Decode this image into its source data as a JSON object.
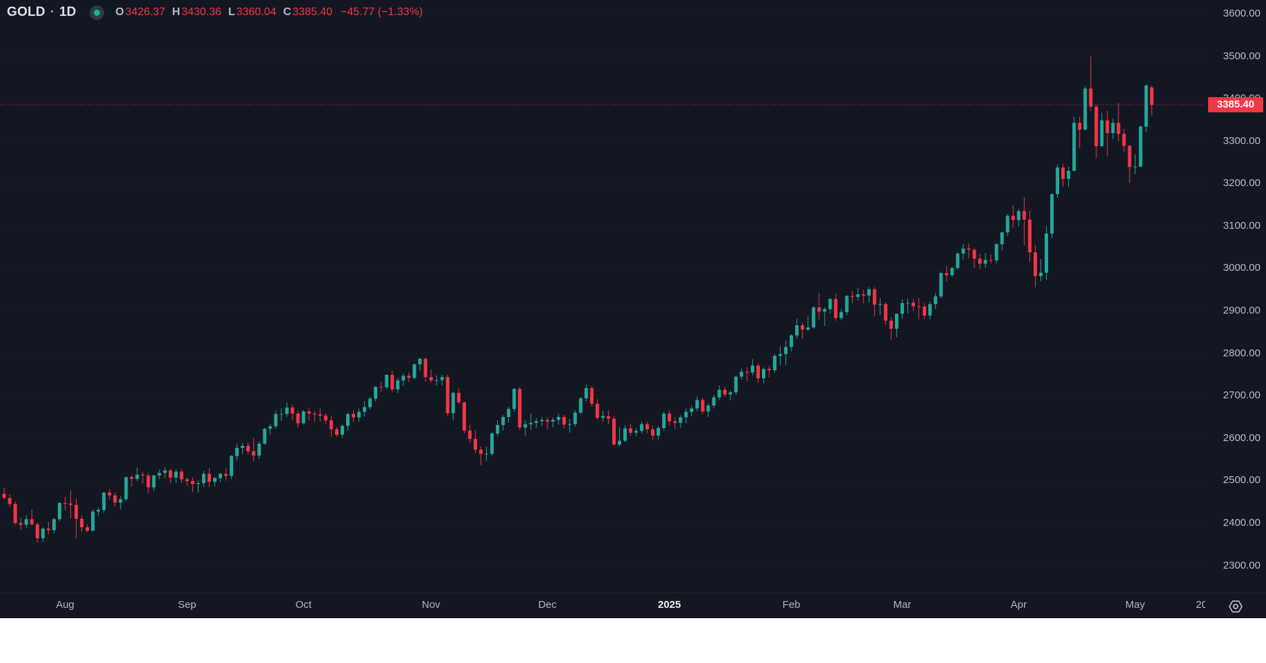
{
  "theme": {
    "background": "#131722",
    "page_background": "#ffffff",
    "up_color": "#26a69a",
    "down_color": "#f23645",
    "axis_text": "#b2b5be",
    "badge_bg": "#f23645",
    "badge_text": "#ffffff",
    "grid": "rgba(140,148,164,0.10)",
    "status_dot": "#14b198"
  },
  "legend": {
    "symbol": "GOLD",
    "separator": "·",
    "interval": "1D",
    "o_label": "O",
    "o_value": "3426.37",
    "h_label": "H",
    "h_value": "3430.36",
    "l_label": "L",
    "l_value": "3360.04",
    "c_label": "C",
    "c_value": "3385.40",
    "change": "−45.77 (−1.33%)",
    "status_icon": "market-status-dot"
  },
  "chart_data": {
    "type": "candlestick",
    "title": "GOLD · 1D",
    "up_color": "#26a69a",
    "down_color": "#f23645",
    "grid": "on",
    "legend_position": "top-left",
    "last_price": 3385.4,
    "last_price_label": "3385.40",
    "last_price_line_color": "#f23645",
    "price_axis": {
      "min": 2300,
      "max": 3600,
      "step": 100,
      "tick_values": [
        3600,
        3500,
        3400,
        3300,
        3200,
        3100,
        3000,
        2900,
        2800,
        2700,
        2600,
        2500,
        2400,
        2300
      ],
      "tick_labels": [
        "3600.00",
        "3500.00",
        "3400.00",
        "3300.00",
        "3200.00",
        "3100.00",
        "3000.00",
        "2900.00",
        "2800.00",
        "2700.00",
        "2600.00",
        "2500.00",
        "2400.00",
        "2300.00"
      ]
    },
    "time_axis_labels": [
      {
        "label": "Aug",
        "index": 11
      },
      {
        "label": "Sep",
        "index": 33
      },
      {
        "label": "Oct",
        "index": 54
      },
      {
        "label": "Nov",
        "index": 77
      },
      {
        "label": "Dec",
        "index": 98
      },
      {
        "label": "2025",
        "index": 120,
        "emphasis": true
      },
      {
        "label": "Feb",
        "index": 142
      },
      {
        "label": "Mar",
        "index": 162
      },
      {
        "label": "Apr",
        "index": 183
      },
      {
        "label": "May",
        "index": 204
      },
      {
        "label": "20",
        "index": 216
      }
    ],
    "x_range_note": "daily candles, mid-Jul 2024 through May 7 2025",
    "candles_ohlc": [
      [
        2469,
        2483,
        2456,
        2459
      ],
      [
        2459,
        2468,
        2438,
        2445
      ],
      [
        2445,
        2451,
        2396,
        2400
      ],
      [
        2400,
        2412,
        2384,
        2396
      ],
      [
        2396,
        2418,
        2388,
        2409
      ],
      [
        2409,
        2432,
        2394,
        2397
      ],
      [
        2397,
        2402,
        2353,
        2364
      ],
      [
        2364,
        2390,
        2356,
        2387
      ],
      [
        2387,
        2403,
        2373,
        2383
      ],
      [
        2383,
        2412,
        2375,
        2409
      ],
      [
        2409,
        2450,
        2404,
        2447
      ],
      [
        2447,
        2462,
        2430,
        2446
      ],
      [
        2446,
        2477,
        2411,
        2443
      ],
      [
        2443,
        2458,
        2364,
        2410
      ],
      [
        2410,
        2418,
        2379,
        2390
      ],
      [
        2390,
        2397,
        2378,
        2382
      ],
      [
        2382,
        2432,
        2380,
        2427
      ],
      [
        2427,
        2438,
        2417,
        2431
      ],
      [
        2431,
        2473,
        2424,
        2472
      ],
      [
        2472,
        2480,
        2455,
        2465
      ],
      [
        2465,
        2472,
        2439,
        2448
      ],
      [
        2448,
        2464,
        2432,
        2456
      ],
      [
        2456,
        2510,
        2452,
        2508
      ],
      [
        2508,
        2512,
        2486,
        2504
      ],
      [
        2504,
        2531,
        2499,
        2514
      ],
      [
        2514,
        2520,
        2493,
        2512
      ],
      [
        2512,
        2518,
        2471,
        2484
      ],
      [
        2484,
        2514,
        2475,
        2512
      ],
      [
        2512,
        2526,
        2503,
        2518
      ],
      [
        2518,
        2532,
        2506,
        2524
      ],
      [
        2524,
        2528,
        2493,
        2507
      ],
      [
        2507,
        2527,
        2495,
        2521
      ],
      [
        2521,
        2528,
        2494,
        2503
      ],
      [
        2503,
        2507,
        2488,
        2499
      ],
      [
        2499,
        2507,
        2473,
        2492
      ],
      [
        2492,
        2500,
        2471,
        2494
      ],
      [
        2494,
        2523,
        2486,
        2516
      ],
      [
        2516,
        2529,
        2485,
        2497
      ],
      [
        2497,
        2508,
        2486,
        2506
      ],
      [
        2506,
        2518,
        2497,
        2516
      ],
      [
        2516,
        2529,
        2500,
        2511
      ],
      [
        2511,
        2560,
        2503,
        2558
      ],
      [
        2558,
        2586,
        2548,
        2577
      ],
      [
        2577,
        2589,
        2563,
        2582
      ],
      [
        2582,
        2590,
        2561,
        2569
      ],
      [
        2569,
        2600,
        2546,
        2559
      ],
      [
        2559,
        2593,
        2551,
        2587
      ],
      [
        2587,
        2625,
        2584,
        2622
      ],
      [
        2622,
        2634,
        2609,
        2628
      ],
      [
        2628,
        2664,
        2622,
        2657
      ],
      [
        2657,
        2670,
        2641,
        2657
      ],
      [
        2657,
        2685,
        2650,
        2672
      ],
      [
        2672,
        2679,
        2642,
        2658
      ],
      [
        2658,
        2665,
        2625,
        2635
      ],
      [
        2635,
        2666,
        2632,
        2663
      ],
      [
        2663,
        2672,
        2641,
        2658
      ],
      [
        2658,
        2663,
        2638,
        2656
      ],
      [
        2656,
        2670,
        2639,
        2653
      ],
      [
        2653,
        2659,
        2632,
        2642
      ],
      [
        2642,
        2653,
        2604,
        2621
      ],
      [
        2621,
        2626,
        2603,
        2608
      ],
      [
        2608,
        2632,
        2601,
        2629
      ],
      [
        2629,
        2660,
        2618,
        2657
      ],
      [
        2657,
        2666,
        2638,
        2649
      ],
      [
        2649,
        2670,
        2639,
        2662
      ],
      [
        2662,
        2687,
        2651,
        2673
      ],
      [
        2673,
        2697,
        2668,
        2693
      ],
      [
        2693,
        2722,
        2687,
        2721
      ],
      [
        2721,
        2733,
        2709,
        2720
      ],
      [
        2720,
        2750,
        2715,
        2749
      ],
      [
        2749,
        2759,
        2708,
        2715
      ],
      [
        2715,
        2742,
        2706,
        2736
      ],
      [
        2736,
        2752,
        2723,
        2747
      ],
      [
        2747,
        2755,
        2732,
        2742
      ],
      [
        2742,
        2776,
        2738,
        2774
      ],
      [
        2774,
        2789,
        2758,
        2787
      ],
      [
        2787,
        2790,
        2733,
        2744
      ],
      [
        2744,
        2762,
        2731,
        2736
      ],
      [
        2736,
        2748,
        2724,
        2737
      ],
      [
        2737,
        2750,
        2724,
        2744
      ],
      [
        2744,
        2749,
        2652,
        2659
      ],
      [
        2659,
        2710,
        2643,
        2707
      ],
      [
        2707,
        2717,
        2680,
        2684
      ],
      [
        2684,
        2686,
        2611,
        2618
      ],
      [
        2618,
        2632,
        2589,
        2598
      ],
      [
        2598,
        2619,
        2565,
        2573
      ],
      [
        2573,
        2580,
        2536,
        2563
      ],
      [
        2563,
        2580,
        2546,
        2563
      ],
      [
        2563,
        2614,
        2558,
        2611
      ],
      [
        2611,
        2642,
        2605,
        2631
      ],
      [
        2631,
        2654,
        2618,
        2650
      ],
      [
        2650,
        2674,
        2637,
        2669
      ],
      [
        2669,
        2718,
        2662,
        2716
      ],
      [
        2716,
        2721,
        2619,
        2625
      ],
      [
        2625,
        2642,
        2606,
        2633
      ],
      [
        2633,
        2658,
        2620,
        2636
      ],
      [
        2636,
        2648,
        2625,
        2640
      ],
      [
        2640,
        2650,
        2629,
        2643
      ],
      [
        2643,
        2649,
        2622,
        2639
      ],
      [
        2639,
        2649,
        2626,
        2643
      ],
      [
        2643,
        2657,
        2632,
        2650
      ],
      [
        2650,
        2655,
        2623,
        2632
      ],
      [
        2632,
        2645,
        2613,
        2633
      ],
      [
        2633,
        2666,
        2627,
        2660
      ],
      [
        2660,
        2697,
        2655,
        2694
      ],
      [
        2694,
        2726,
        2687,
        2718
      ],
      [
        2718,
        2723,
        2675,
        2681
      ],
      [
        2681,
        2692,
        2644,
        2648
      ],
      [
        2648,
        2664,
        2639,
        2652
      ],
      [
        2652,
        2665,
        2633,
        2646
      ],
      [
        2646,
        2652,
        2583,
        2585
      ],
      [
        2585,
        2626,
        2580,
        2594
      ],
      [
        2594,
        2631,
        2591,
        2623
      ],
      [
        2623,
        2634,
        2605,
        2613
      ],
      [
        2613,
        2624,
        2605,
        2617
      ],
      [
        2617,
        2639,
        2611,
        2633
      ],
      [
        2633,
        2638,
        2612,
        2621
      ],
      [
        2621,
        2629,
        2596,
        2606
      ],
      [
        2606,
        2629,
        2596,
        2624
      ],
      [
        2624,
        2662,
        2617,
        2658
      ],
      [
        2658,
        2666,
        2630,
        2640
      ],
      [
        2640,
        2650,
        2622,
        2636
      ],
      [
        2636,
        2654,
        2625,
        2649
      ],
      [
        2649,
        2670,
        2635,
        2662
      ],
      [
        2662,
        2677,
        2652,
        2670
      ],
      [
        2670,
        2698,
        2663,
        2690
      ],
      [
        2690,
        2695,
        2656,
        2663
      ],
      [
        2663,
        2682,
        2650,
        2677
      ],
      [
        2677,
        2702,
        2670,
        2696
      ],
      [
        2696,
        2724,
        2690,
        2714
      ],
      [
        2714,
        2721,
        2697,
        2703
      ],
      [
        2703,
        2712,
        2689,
        2708
      ],
      [
        2708,
        2748,
        2702,
        2745
      ],
      [
        2745,
        2763,
        2738,
        2756
      ],
      [
        2756,
        2767,
        2735,
        2755
      ],
      [
        2755,
        2786,
        2748,
        2771
      ],
      [
        2771,
        2776,
        2731,
        2741
      ],
      [
        2741,
        2767,
        2730,
        2763
      ],
      [
        2763,
        2770,
        2744,
        2760
      ],
      [
        2760,
        2798,
        2754,
        2794
      ],
      [
        2794,
        2817,
        2772,
        2798
      ],
      [
        2798,
        2830,
        2772,
        2815
      ],
      [
        2815,
        2845,
        2804,
        2842
      ],
      [
        2842,
        2882,
        2834,
        2866
      ],
      [
        2866,
        2873,
        2834,
        2856
      ],
      [
        2856,
        2887,
        2852,
        2861
      ],
      [
        2861,
        2911,
        2858,
        2908
      ],
      [
        2908,
        2942,
        2880,
        2898
      ],
      [
        2898,
        2909,
        2864,
        2904
      ],
      [
        2904,
        2930,
        2894,
        2928
      ],
      [
        2928,
        2940,
        2877,
        2883
      ],
      [
        2883,
        2905,
        2878,
        2897
      ],
      [
        2897,
        2937,
        2890,
        2935
      ],
      [
        2935,
        2947,
        2918,
        2933
      ],
      [
        2933,
        2954,
        2924,
        2939
      ],
      [
        2939,
        2950,
        2917,
        2936
      ],
      [
        2936,
        2956,
        2920,
        2951
      ],
      [
        2951,
        2956,
        2888,
        2915
      ],
      [
        2915,
        2930,
        2891,
        2916
      ],
      [
        2916,
        2920,
        2867,
        2877
      ],
      [
        2877,
        2885,
        2832,
        2858
      ],
      [
        2858,
        2894,
        2838,
        2893
      ],
      [
        2893,
        2927,
        2880,
        2918
      ],
      [
        2918,
        2929,
        2894,
        2919
      ],
      [
        2919,
        2928,
        2900,
        2911
      ],
      [
        2911,
        2930,
        2880,
        2910
      ],
      [
        2910,
        2918,
        2881,
        2889
      ],
      [
        2889,
        2922,
        2880,
        2916
      ],
      [
        2916,
        2942,
        2904,
        2934
      ],
      [
        2934,
        2993,
        2930,
        2989
      ],
      [
        2989,
        3005,
        2969,
        2984
      ],
      [
        2984,
        3004,
        2980,
        3001
      ],
      [
        3001,
        3039,
        2997,
        3035
      ],
      [
        3035,
        3057,
        3021,
        3047
      ],
      [
        3047,
        3059,
        3023,
        3044
      ],
      [
        3044,
        3048,
        3001,
        3023
      ],
      [
        3023,
        3034,
        2999,
        3011
      ],
      [
        3011,
        3036,
        3002,
        3020
      ],
      [
        3020,
        3033,
        3012,
        3019
      ],
      [
        3019,
        3060,
        3012,
        3057
      ],
      [
        3057,
        3087,
        3043,
        3085
      ],
      [
        3085,
        3128,
        3076,
        3124
      ],
      [
        3124,
        3149,
        3096,
        3114
      ],
      [
        3114,
        3140,
        3100,
        3135
      ],
      [
        3135,
        3168,
        3054,
        3115
      ],
      [
        3115,
        3136,
        3015,
        3038
      ],
      [
        3038,
        3055,
        2956,
        2982
      ],
      [
        2982,
        3022,
        2970,
        2990
      ],
      [
        2990,
        3100,
        2973,
        3082
      ],
      [
        3082,
        3176,
        3071,
        3175
      ],
      [
        3175,
        3245,
        3166,
        3238
      ],
      [
        3238,
        3246,
        3193,
        3211
      ],
      [
        3211,
        3240,
        3192,
        3230
      ],
      [
        3230,
        3357,
        3229,
        3343
      ],
      [
        3343,
        3358,
        3283,
        3327
      ],
      [
        3327,
        3430,
        3326,
        3424
      ],
      [
        3424,
        3500,
        3370,
        3381
      ],
      [
        3381,
        3386,
        3260,
        3288
      ],
      [
        3288,
        3367,
        3287,
        3349
      ],
      [
        3349,
        3371,
        3265,
        3319
      ],
      [
        3319,
        3353,
        3305,
        3343
      ],
      [
        3343,
        3390,
        3300,
        3317
      ],
      [
        3317,
        3328,
        3274,
        3289
      ],
      [
        3289,
        3291,
        3202,
        3239
      ],
      [
        3239,
        3269,
        3222,
        3240
      ],
      [
        3240,
        3337,
        3237,
        3334
      ],
      [
        3334,
        3435,
        3322,
        3431
      ],
      [
        3426.37,
        3430.36,
        3360.04,
        3385.4
      ]
    ]
  },
  "time_axis_icon": "settings-gear-icon"
}
